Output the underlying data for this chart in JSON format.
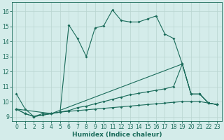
{
  "xlabel": "Humidex (Indice chaleur)",
  "background_color": "#d4ecea",
  "grid_color": "#b8d4d0",
  "line_color": "#1a6b5a",
  "xlim": [
    -0.5,
    23.5
  ],
  "ylim": [
    8.7,
    16.6
  ],
  "xticks": [
    0,
    1,
    2,
    3,
    4,
    5,
    6,
    7,
    8,
    9,
    10,
    11,
    12,
    13,
    14,
    15,
    16,
    17,
    18,
    19,
    20,
    21,
    22,
    23
  ],
  "yticks": [
    9,
    10,
    11,
    12,
    13,
    14,
    15,
    16
  ],
  "line_main_x": [
    0,
    1,
    2,
    3,
    4,
    5,
    6,
    7,
    8,
    9,
    10,
    11,
    12,
    13,
    14,
    15,
    16,
    17,
    18,
    19,
    20,
    21,
    22,
    23
  ],
  "line_main_y": [
    10.5,
    9.5,
    9.0,
    9.2,
    9.2,
    9.3,
    15.1,
    14.2,
    13.0,
    14.9,
    15.05,
    16.1,
    15.4,
    15.3,
    15.3,
    15.5,
    15.7,
    14.5,
    14.2,
    12.5,
    10.5,
    10.5,
    9.9,
    9.8
  ],
  "line_diag_x": [
    0,
    1,
    2,
    3,
    4,
    5,
    6,
    7,
    8,
    9,
    10,
    11,
    12,
    13,
    14,
    15,
    16,
    17,
    18,
    19,
    20,
    21,
    22,
    23
  ],
  "line_diag_y": [
    9.5,
    9.2,
    9.0,
    9.1,
    9.2,
    9.3,
    9.4,
    9.6,
    9.7,
    9.85,
    10.0,
    10.15,
    10.3,
    10.45,
    10.55,
    10.65,
    10.75,
    10.85,
    11.0,
    12.5,
    10.5,
    10.5,
    9.9,
    9.8
  ],
  "line_flat_x": [
    0,
    1,
    2,
    3,
    4,
    5,
    6,
    7,
    8,
    9,
    10,
    11,
    12,
    13,
    14,
    15,
    16,
    17,
    18,
    19,
    20,
    21,
    22,
    23
  ],
  "line_flat_y": [
    9.5,
    9.2,
    9.0,
    9.1,
    9.2,
    9.3,
    9.35,
    9.4,
    9.45,
    9.5,
    9.55,
    9.6,
    9.65,
    9.7,
    9.75,
    9.8,
    9.85,
    9.9,
    9.95,
    10.0,
    10.0,
    10.0,
    9.9,
    9.8
  ],
  "line_tri_x": [
    0,
    4,
    19,
    20,
    21,
    22,
    23
  ],
  "line_tri_y": [
    9.5,
    9.2,
    12.5,
    10.5,
    10.5,
    9.9,
    9.8
  ]
}
